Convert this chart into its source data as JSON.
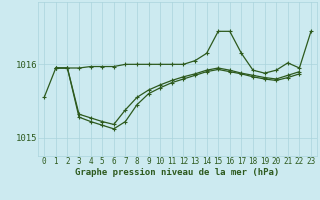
{
  "x": [
    0,
    1,
    2,
    3,
    4,
    5,
    6,
    7,
    8,
    9,
    10,
    11,
    12,
    13,
    14,
    15,
    16,
    17,
    18,
    19,
    20,
    21,
    22,
    23
  ],
  "line1": [
    1015.55,
    1015.95,
    1015.95,
    1015.95,
    1015.97,
    1015.97,
    1015.97,
    1016.0,
    1016.0,
    1016.0,
    1016.0,
    1016.0,
    1016.0,
    1016.05,
    1016.15,
    1016.45,
    1016.45,
    1016.15,
    1015.92,
    1015.88,
    1015.92,
    1016.02,
    1015.95,
    1016.45
  ],
  "line2_x": [
    1,
    2,
    3,
    4,
    5,
    6,
    7,
    8,
    9,
    10,
    11,
    12,
    13,
    14,
    15,
    16,
    17,
    18,
    19,
    20,
    21,
    22
  ],
  "line2_y": [
    1015.95,
    1015.95,
    1015.32,
    1015.27,
    1015.22,
    1015.18,
    1015.38,
    1015.55,
    1015.65,
    1015.72,
    1015.78,
    1015.83,
    1015.87,
    1015.92,
    1015.95,
    1015.92,
    1015.88,
    1015.85,
    1015.82,
    1015.8,
    1015.85,
    1015.9
  ],
  "line3_x": [
    1,
    2,
    3,
    4,
    5,
    6,
    7,
    8,
    9,
    10,
    11,
    12,
    13,
    14,
    15,
    16,
    17,
    18,
    19,
    20,
    21,
    22
  ],
  "line3_y": [
    1015.95,
    1015.95,
    1015.28,
    1015.22,
    1015.17,
    1015.12,
    1015.22,
    1015.45,
    1015.6,
    1015.68,
    1015.75,
    1015.8,
    1015.85,
    1015.9,
    1015.93,
    1015.9,
    1015.87,
    1015.83,
    1015.8,
    1015.78,
    1015.82,
    1015.87
  ],
  "ylim": [
    1014.75,
    1016.85
  ],
  "yticks": [
    1015.0,
    1016.0
  ],
  "xlabel": "Graphe pression niveau de la mer (hPa)",
  "bg_color": "#cceaf0",
  "grid_color": "#aad4dc",
  "line_color": "#2d5a1e",
  "line_width": 0.9,
  "marker": "+",
  "markersize": 3.5,
  "xlabel_fontsize": 6.5,
  "ytick_fontsize": 6.5,
  "xtick_fontsize": 5.5
}
